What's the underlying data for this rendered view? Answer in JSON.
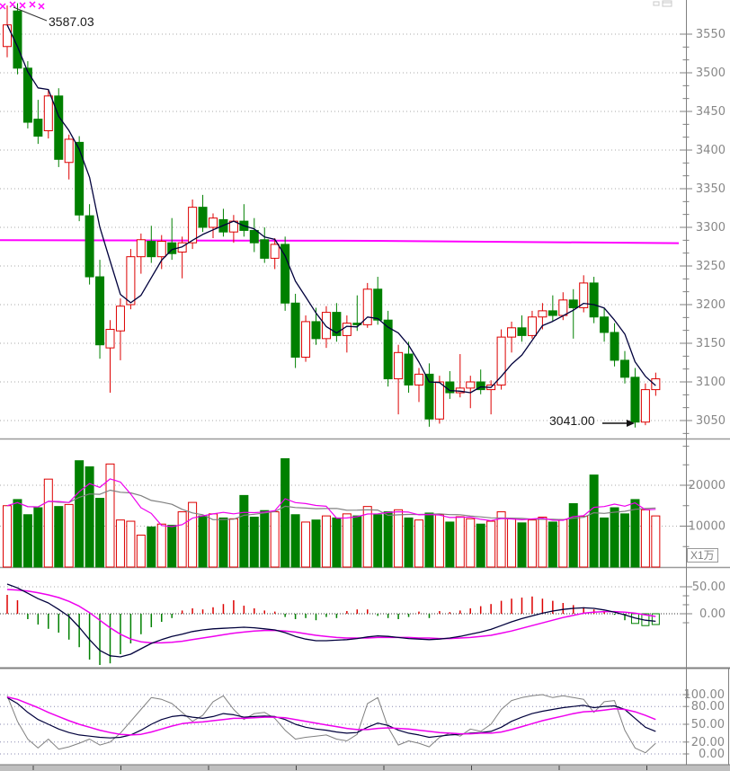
{
  "annotations": {
    "high_label": "3587.03",
    "low_label": "3041.00",
    "volume_unit_label": "X1万"
  },
  "icons": {
    "top_right": "mini-window-icon",
    "sell_marker": "magenta-x-marker"
  },
  "axes": {
    "price_ticks": [
      3550,
      3500,
      3450,
      3400,
      3350,
      3300,
      3250,
      3200,
      3150,
      3100,
      3050
    ],
    "volume_ticks": [
      {
        "value": 20000,
        "label": "20000"
      },
      {
        "value": 10000,
        "label": "10000"
      }
    ],
    "macd_ticks": [
      {
        "value": 50,
        "label": "50.00"
      },
      {
        "value": 0,
        "label": "0.00"
      }
    ],
    "kdj_ticks": [
      {
        "value": 100,
        "label": "100.00"
      },
      {
        "value": 80,
        "label": "80.00"
      },
      {
        "value": 50,
        "label": "50.00"
      },
      {
        "value": 20,
        "label": "20.00"
      },
      {
        "value": 0,
        "label": "0.00"
      }
    ]
  },
  "colors": {
    "up": "#dd0000",
    "down": "#008000",
    "ma_short": "#00003c",
    "ma_long": "#ff00ff",
    "dea": "#ee00ee",
    "grid": "#aaaaaa",
    "kdj_grid": "#8a8ab0",
    "axis": "#808080",
    "label": "#888888",
    "kdj_j": "#808080",
    "kdj_k": "#00003c",
    "kdj_d": "#ee00ee",
    "vol_ma5": "#ee00ee",
    "vol_ma10": "#808080",
    "annotation": "#111111",
    "marker": "#ff00ff",
    "bottom_bar": "#bfbfbf"
  },
  "chart_data": {
    "type": "candlestick",
    "title": "",
    "legend_position": "none",
    "grid": true,
    "panels": [
      {
        "id": "price",
        "indicator": "MA",
        "ylim": [
          3020,
          3600
        ],
        "yticks": [
          3050,
          3100,
          3150,
          3200,
          3250,
          3300,
          3350,
          3400,
          3450,
          3500,
          3550
        ]
      },
      {
        "id": "volume",
        "indicator": "VOL",
        "unit": "X1万",
        "ylim": [
          0,
          30000
        ],
        "yticks": [
          10000,
          20000
        ]
      },
      {
        "id": "macd",
        "indicator": "MACD",
        "ylim": [
          -103,
          85
        ],
        "yticks": [
          0,
          50
        ]
      },
      {
        "id": "kdj",
        "indicator": "KDJ",
        "ylim": [
          -10,
          140
        ],
        "yticks": [
          0,
          20,
          50,
          80,
          100
        ]
      }
    ],
    "high_point": 3587.03,
    "low_point": 3041.0,
    "candles": [
      [
        3534,
        3587,
        3520,
        3562,
        15000
      ],
      [
        3580,
        3590,
        3498,
        3506,
        16500
      ],
      [
        3506,
        3515,
        3428,
        3436,
        12800
      ],
      [
        3440,
        3465,
        3408,
        3418,
        14500
      ],
      [
        3425,
        3478,
        3415,
        3470,
        21500
      ],
      [
        3470,
        3480,
        3378,
        3388,
        14800
      ],
      [
        3384,
        3420,
        3362,
        3414,
        15300
      ],
      [
        3410,
        3418,
        3308,
        3316,
        26000
      ],
      [
        3315,
        3330,
        3226,
        3236,
        24500
      ],
      [
        3236,
        3258,
        3130,
        3148,
        16800
      ],
      [
        3144,
        3180,
        3086,
        3168,
        25200
      ],
      [
        3166,
        3208,
        3128,
        3198,
        11500
      ],
      [
        3200,
        3272,
        3194,
        3262,
        11200
      ],
      [
        3262,
        3292,
        3240,
        3284,
        7800
      ],
      [
        3282,
        3302,
        3254,
        3262,
        9800
      ],
      [
        3262,
        3290,
        3246,
        3282,
        10500
      ],
      [
        3280,
        3312,
        3258,
        3266,
        10200
      ],
      [
        3268,
        3288,
        3234,
        3280,
        13500
      ],
      [
        3280,
        3336,
        3272,
        3326,
        15800
      ],
      [
        3326,
        3342,
        3294,
        3300,
        12500
      ],
      [
        3300,
        3318,
        3286,
        3312,
        13000
      ],
      [
        3310,
        3324,
        3288,
        3294,
        12000
      ],
      [
        3294,
        3316,
        3280,
        3308,
        11800
      ],
      [
        3308,
        3330,
        3288,
        3296,
        17500
      ],
      [
        3296,
        3312,
        3268,
        3280,
        12200
      ],
      [
        3284,
        3300,
        3254,
        3260,
        13800
      ],
      [
        3260,
        3286,
        3246,
        3278,
        13500
      ],
      [
        3278,
        3288,
        3192,
        3202,
        26500
      ],
      [
        3202,
        3214,
        3118,
        3132,
        12800
      ],
      [
        3132,
        3186,
        3126,
        3178,
        11000
      ],
      [
        3178,
        3196,
        3148,
        3156,
        11500
      ],
      [
        3156,
        3198,
        3144,
        3190,
        12500
      ],
      [
        3190,
        3202,
        3152,
        3160,
        12000
      ],
      [
        3160,
        3186,
        3138,
        3176,
        13000
      ],
      [
        3176,
        3212,
        3166,
        3174,
        12500
      ],
      [
        3174,
        3228,
        3170,
        3220,
        14800
      ],
      [
        3220,
        3236,
        3174,
        3180,
        12800
      ],
      [
        3180,
        3192,
        3094,
        3104,
        13500
      ],
      [
        3104,
        3148,
        3058,
        3138,
        14000
      ],
      [
        3136,
        3152,
        3086,
        3096,
        12000
      ],
      [
        3096,
        3118,
        3074,
        3110,
        11500
      ],
      [
        3110,
        3124,
        3042,
        3052,
        13200
      ],
      [
        3052,
        3108,
        3046,
        3100,
        12800
      ],
      [
        3100,
        3114,
        3078,
        3086,
        11000
      ],
      [
        3086,
        3136,
        3080,
        3092,
        12300
      ],
      [
        3092,
        3108,
        3066,
        3100,
        11800
      ],
      [
        3100,
        3116,
        3084,
        3090,
        10500
      ],
      [
        3090,
        3102,
        3058,
        3096,
        11200
      ],
      [
        3096,
        3168,
        3090,
        3158,
        13500
      ],
      [
        3158,
        3178,
        3138,
        3170,
        11800
      ],
      [
        3170,
        3186,
        3152,
        3160,
        10800
      ],
      [
        3160,
        3192,
        3156,
        3184,
        11500
      ],
      [
        3184,
        3202,
        3168,
        3192,
        12200
      ],
      [
        3192,
        3212,
        3178,
        3186,
        11000
      ],
      [
        3186,
        3216,
        3180,
        3206,
        11600
      ],
      [
        3206,
        3220,
        3156,
        3196,
        15500
      ],
      [
        3196,
        3238,
        3190,
        3228,
        12400
      ],
      [
        3228,
        3236,
        3176,
        3184,
        22500
      ],
      [
        3184,
        3196,
        3152,
        3164,
        12000
      ],
      [
        3164,
        3176,
        3120,
        3128,
        14500
      ],
      [
        3128,
        3140,
        3098,
        3106,
        13000
      ],
      [
        3106,
        3118,
        3041,
        3048,
        16500
      ],
      [
        3048,
        3098,
        3044,
        3090,
        14000
      ],
      [
        3090,
        3112,
        3082,
        3104,
        12500
      ]
    ],
    "ma_long_points": [
      [
        0,
        3283.5
      ],
      [
        0.55,
        3282.5
      ],
      [
        1,
        3279.5
      ]
    ],
    "macd": {
      "dif": [
        55,
        48,
        38,
        28,
        20,
        8,
        -5,
        -25,
        -48,
        -68,
        -78,
        -80,
        -75,
        -65,
        -55,
        -48,
        -42,
        -38,
        -33,
        -30,
        -28,
        -27,
        -26,
        -25,
        -26,
        -28,
        -30,
        -35,
        -42,
        -47,
        -50,
        -50,
        -49,
        -48,
        -46,
        -43,
        -41,
        -42,
        -44,
        -46,
        -47,
        -48,
        -47,
        -45,
        -42,
        -38,
        -34,
        -29,
        -22,
        -15,
        -9,
        -4,
        1,
        5,
        8,
        10,
        11,
        10,
        7,
        3,
        -2,
        -8,
        -12,
        -14
      ],
      "dea": [
        45,
        44,
        42,
        39,
        35,
        30,
        23,
        14,
        2,
        -12,
        -26,
        -38,
        -47,
        -52,
        -54,
        -54,
        -53,
        -51,
        -48,
        -45,
        -42,
        -39,
        -36,
        -34,
        -32,
        -31,
        -31,
        -32,
        -34,
        -37,
        -40,
        -42,
        -44,
        -45,
        -45,
        -45,
        -44,
        -44,
        -44,
        -44,
        -45,
        -45,
        -46,
        -46,
        -45,
        -44,
        -42,
        -40,
        -36,
        -32,
        -27,
        -22,
        -17,
        -12,
        -7,
        -3,
        1,
        3,
        4,
        4,
        3,
        1,
        -2,
        -5
      ],
      "hist": [
        35,
        25,
        -10,
        -20,
        -28,
        -35,
        -48,
        -62,
        -85,
        -95,
        -92,
        -75,
        -55,
        -38,
        -25,
        -15,
        -8,
        6,
        10,
        8,
        12,
        18,
        25,
        15,
        10,
        6,
        4,
        -6,
        -10,
        -8,
        -12,
        -6,
        -8,
        5,
        8,
        8,
        -4,
        -8,
        -10,
        -6,
        4,
        -8,
        5,
        3,
        6,
        10,
        14,
        18,
        24,
        28,
        30,
        32,
        28,
        24,
        20,
        16,
        12,
        8,
        4,
        -2,
        -12,
        -18,
        -22,
        -20
      ]
    },
    "kdj": {
      "k": [
        95,
        85,
        70,
        58,
        50,
        42,
        36,
        32,
        30,
        28,
        27,
        28,
        32,
        40,
        50,
        58,
        63,
        65,
        62,
        60,
        63,
        68,
        66,
        62,
        63,
        64,
        63,
        58,
        50,
        45,
        42,
        40,
        37,
        35,
        36,
        45,
        52,
        48,
        40,
        35,
        32,
        28,
        30,
        32,
        33,
        35,
        36,
        38,
        45,
        55,
        62,
        68,
        72,
        75,
        78,
        80,
        82,
        78,
        80,
        81,
        75,
        60,
        45,
        38
      ],
      "d": [
        96,
        92,
        85,
        78,
        70,
        63,
        56,
        50,
        45,
        40,
        36,
        33,
        32,
        33,
        37,
        42,
        47,
        51,
        53,
        54,
        56,
        58,
        60,
        60,
        61,
        62,
        62,
        61,
        58,
        55,
        52,
        49,
        46,
        43,
        41,
        41,
        43,
        44,
        43,
        42,
        40,
        38,
        36,
        35,
        34,
        34,
        35,
        35,
        37,
        41,
        46,
        51,
        56,
        60,
        64,
        68,
        71,
        72,
        74,
        76,
        75,
        71,
        65,
        58
      ],
      "j": [
        98,
        55,
        25,
        10,
        25,
        8,
        12,
        18,
        25,
        15,
        20,
        35,
        55,
        75,
        95,
        92,
        85,
        70,
        55,
        65,
        88,
        98,
        75,
        58,
        68,
        70,
        60,
        40,
        25,
        28,
        30,
        32,
        25,
        22,
        33,
        85,
        95,
        45,
        15,
        22,
        18,
        12,
        28,
        35,
        30,
        42,
        38,
        50,
        75,
        90,
        95,
        98,
        100,
        95,
        98,
        95,
        92,
        70,
        88,
        90,
        40,
        10,
        2,
        18
      ]
    },
    "sell_markers": [
      [
        3,
        7
      ],
      [
        14,
        5
      ],
      [
        25,
        6
      ],
      [
        36,
        5
      ],
      [
        46,
        7
      ]
    ]
  }
}
